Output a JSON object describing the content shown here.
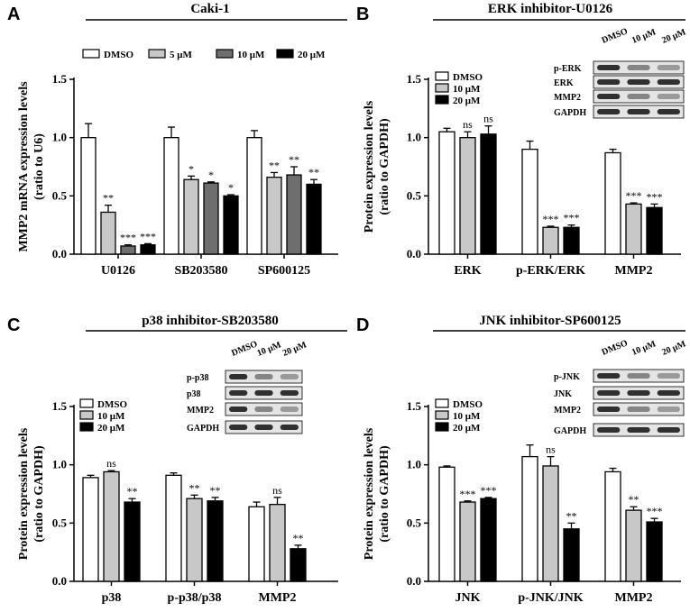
{
  "chart_data": [
    {
      "panel": "A",
      "type": "bar",
      "title": "Caki-1",
      "ylabel": "MMP2 mRNA expression levels (ratio to U6)",
      "ylabel_lines": [
        "MMP2 mRNA expression levels",
        "(ratio to U6)"
      ],
      "ylim": [
        0,
        1.5
      ],
      "yticks": [
        "0.0",
        "0.5",
        "1.0",
        "1.5"
      ],
      "categories": [
        "U0126",
        "SB203580",
        "SP600125"
      ],
      "series": [
        {
          "name": "DMSO",
          "color": "#ffffff",
          "values": [
            1.0,
            1.0,
            1.0
          ],
          "errors": [
            0.12,
            0.09,
            0.06
          ],
          "sig": [
            "",
            "",
            ""
          ]
        },
        {
          "name": "5 μM",
          "color": "#c8c8c8",
          "values": [
            0.36,
            0.64,
            0.66
          ],
          "errors": [
            0.06,
            0.03,
            0.04
          ],
          "sig": [
            "**",
            "*",
            "**"
          ]
        },
        {
          "name": "10 μM",
          "color": "#6e6e6e",
          "values": [
            0.07,
            0.61,
            0.68
          ],
          "errors": [
            0.01,
            0.01,
            0.07
          ],
          "sig": [
            "***",
            "*",
            "**"
          ]
        },
        {
          "name": "20 μM",
          "color": "#000000",
          "values": [
            0.08,
            0.5,
            0.6
          ],
          "errors": [
            0.01,
            0.01,
            0.04
          ],
          "sig": [
            "***",
            "*",
            "**"
          ]
        }
      ],
      "legend": "top"
    },
    {
      "panel": "B",
      "type": "bar",
      "title": "ERK inhibitor-U0126",
      "ylabel": "Protein expression levels (ratio to GAPDH)",
      "ylabel_lines": [
        "Protein expression levels",
        "(ratio to GAPDH)"
      ],
      "ylim": [
        0,
        1.5
      ],
      "yticks": [
        "0.0",
        "0.5",
        "1.0",
        "1.5"
      ],
      "categories": [
        "ERK",
        "p-ERK/ERK",
        "MMP2"
      ],
      "series": [
        {
          "name": "DMSO",
          "color": "#ffffff",
          "values": [
            1.05,
            0.9,
            0.87
          ],
          "errors": [
            0.03,
            0.07,
            0.03
          ],
          "sig": [
            "",
            "",
            ""
          ]
        },
        {
          "name": "10 μM",
          "color": "#c8c8c8",
          "values": [
            1.0,
            0.23,
            0.43
          ],
          "errors": [
            0.05,
            0.01,
            0.01
          ],
          "sig": [
            "ns",
            "***",
            "***"
          ]
        },
        {
          "name": "20 μM",
          "color": "#000000",
          "values": [
            1.03,
            0.23,
            0.4
          ],
          "errors": [
            0.07,
            0.02,
            0.03
          ],
          "sig": [
            "ns",
            "***",
            "***"
          ]
        }
      ],
      "legend": "top-left",
      "blot": {
        "lanes": [
          "DMSO",
          "10 μM",
          "20 μM"
        ],
        "rows": [
          "p-ERK",
          "ERK",
          "MMP2",
          "GAPDH"
        ]
      }
    },
    {
      "panel": "C",
      "type": "bar",
      "title": "p38 inhibitor-SB203580",
      "ylabel": "Protein expression levels (ratio to GAPDH)",
      "ylabel_lines": [
        "Protein expression levels",
        "(ratio to GAPDH)"
      ],
      "ylim": [
        0,
        1.5
      ],
      "yticks": [
        "0.0",
        "0.5",
        "1.0",
        "1.5"
      ],
      "categories": [
        "p38",
        "p-p38/p38",
        "MMP2"
      ],
      "series": [
        {
          "name": "DMSO",
          "color": "#ffffff",
          "values": [
            0.89,
            0.91,
            0.64
          ],
          "errors": [
            0.02,
            0.02,
            0.04
          ],
          "sig": [
            "",
            "",
            ""
          ]
        },
        {
          "name": "10 μM",
          "color": "#c8c8c8",
          "values": [
            0.94,
            0.71,
            0.66
          ],
          "errors": [
            0.01,
            0.03,
            0.06
          ],
          "sig": [
            "ns",
            "**",
            "ns"
          ]
        },
        {
          "name": "20 μM",
          "color": "#000000",
          "values": [
            0.68,
            0.69,
            0.28
          ],
          "errors": [
            0.03,
            0.03,
            0.03
          ],
          "sig": [
            "**",
            "**",
            "**"
          ]
        }
      ],
      "legend": "top-left",
      "blot": {
        "lanes": [
          "DMSO",
          "10 μM",
          "20 μM"
        ],
        "rows": [
          "p-p38",
          "p38",
          "MMP2",
          "GAPDH"
        ]
      }
    },
    {
      "panel": "D",
      "type": "bar",
      "title": "JNK inhibitor-SP600125",
      "ylabel": "Protein expression levels (ratio to GAPDH)",
      "ylabel_lines": [
        "Protein expression levels",
        "(ratio to GAPDH)"
      ],
      "ylim": [
        0,
        1.5
      ],
      "yticks": [
        "0.0",
        "0.5",
        "1.0",
        "1.5"
      ],
      "categories": [
        "JNK",
        "p-JNK/JNK",
        "MMP2"
      ],
      "series": [
        {
          "name": "DMSO",
          "color": "#ffffff",
          "values": [
            0.98,
            1.07,
            0.94
          ],
          "errors": [
            0.01,
            0.1,
            0.03
          ],
          "sig": [
            "",
            "",
            ""
          ]
        },
        {
          "name": "10 μM",
          "color": "#c8c8c8",
          "values": [
            0.68,
            0.99,
            0.61
          ],
          "errors": [
            0.01,
            0.08,
            0.03
          ],
          "sig": [
            "***",
            "ns",
            "**"
          ]
        },
        {
          "name": "20 μM",
          "color": "#000000",
          "values": [
            0.71,
            0.45,
            0.51
          ],
          "errors": [
            0.01,
            0.05,
            0.03
          ],
          "sig": [
            "***",
            "**",
            "***"
          ]
        }
      ],
      "legend": "top-left",
      "blot": {
        "lanes": [
          "DMSO",
          "10 μM",
          "20 μM"
        ],
        "rows": [
          "p-JNK",
          "JNK",
          "MMP2",
          "GAPDH"
        ]
      }
    }
  ]
}
